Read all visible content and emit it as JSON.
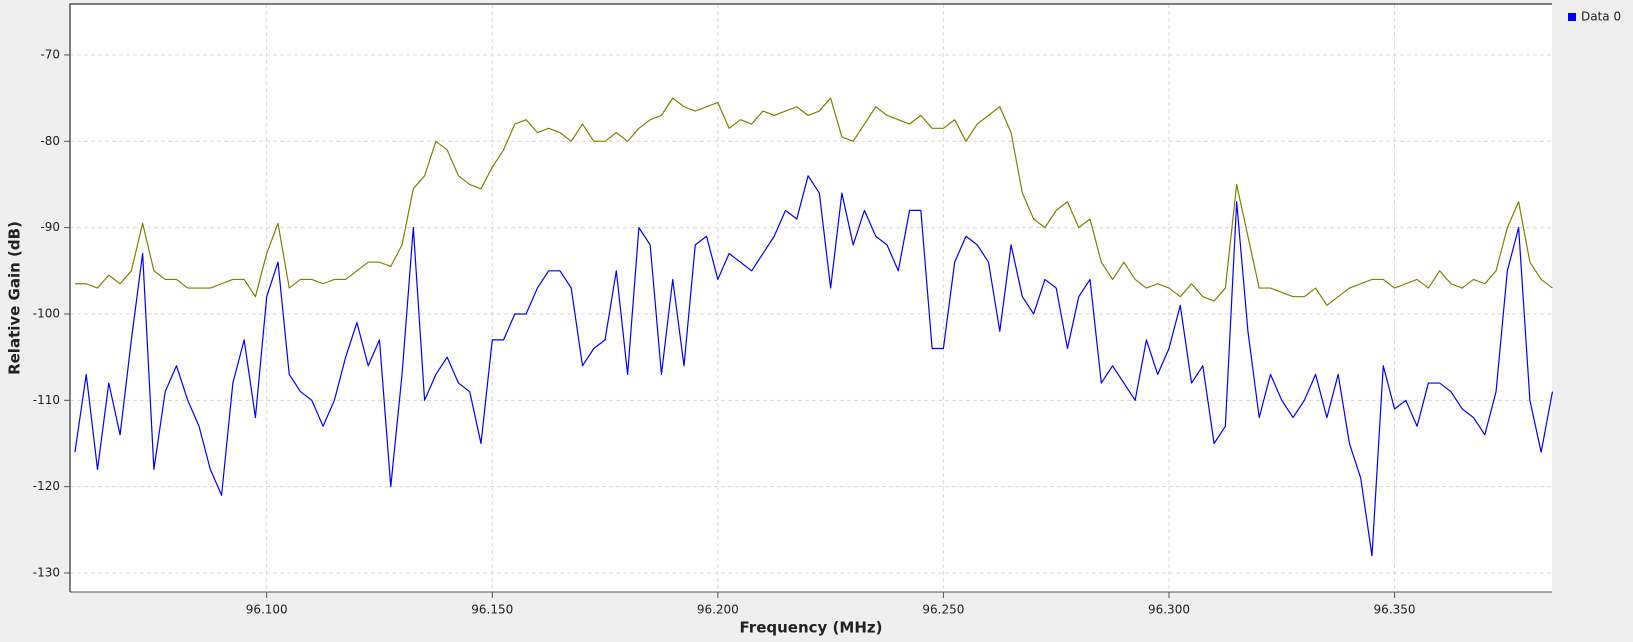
{
  "chart_data": {
    "type": "line",
    "x_label": "Frequency (MHz)",
    "y_label": "Relative Gain (dB)",
    "x": [
      96.0575,
      96.06,
      96.0625,
      96.065,
      96.0675,
      96.07,
      96.0725,
      96.075,
      96.0775,
      96.08,
      96.0825,
      96.085,
      96.0875,
      96.09,
      96.0925,
      96.095,
      96.0975,
      96.1,
      96.1025,
      96.105,
      96.1075,
      96.11,
      96.1125,
      96.115,
      96.1175,
      96.12,
      96.1225,
      96.125,
      96.1275,
      96.13,
      96.1325,
      96.135,
      96.1375,
      96.14,
      96.1425,
      96.145,
      96.1475,
      96.15,
      96.1525,
      96.155,
      96.1575,
      96.16,
      96.1625,
      96.165,
      96.1675,
      96.17,
      96.1725,
      96.175,
      96.1775,
      96.18,
      96.1825,
      96.185,
      96.1875,
      96.19,
      96.1925,
      96.195,
      96.1975,
      96.2,
      96.2025,
      96.205,
      96.2075,
      96.21,
      96.2125,
      96.215,
      96.2175,
      96.22,
      96.2225,
      96.225,
      96.2275,
      96.23,
      96.2325,
      96.235,
      96.2375,
      96.24,
      96.2425,
      96.245,
      96.2475,
      96.25,
      96.2525,
      96.255,
      96.2575,
      96.26,
      96.2625,
      96.265,
      96.2675,
      96.27,
      96.2725,
      96.275,
      96.2775,
      96.28,
      96.2825,
      96.285,
      96.2875,
      96.29,
      96.2925,
      96.295,
      96.2975,
      96.3,
      96.3025,
      96.305,
      96.3075,
      96.31,
      96.3125,
      96.315,
      96.3175,
      96.32,
      96.3225,
      96.325,
      96.3275,
      96.33,
      96.3325,
      96.335,
      96.3375,
      96.34,
      96.3425,
      96.345,
      96.3475,
      96.35,
      96.3525,
      96.355,
      96.3575,
      96.36,
      96.3625,
      96.365,
      96.3675,
      96.37,
      96.3725,
      96.375,
      96.3775,
      96.38,
      96.3825,
      96.385
    ],
    "series": [
      {
        "name": "Data 0",
        "color": "#0000ff",
        "values": [
          -116,
          -107,
          -118,
          -108,
          -114,
          -103,
          -93,
          -118,
          -109,
          -106,
          -110,
          -113,
          -118,
          -121,
          -108,
          -103,
          -112,
          -98,
          -94,
          -107,
          -109,
          -110,
          -113,
          -110,
          -105,
          -101,
          -106,
          -103,
          -120,
          -107,
          -90,
          -110,
          -107,
          -105,
          -108,
          -109,
          -115,
          -103,
          -103,
          -100,
          -100,
          -97,
          -95,
          -95,
          -97,
          -106,
          -104,
          -103,
          -95,
          -107,
          -90,
          -92,
          -107,
          -96,
          -106,
          -92,
          -91,
          -96,
          -93,
          -94,
          -95,
          -93,
          -91,
          -88,
          -89,
          -84,
          -86,
          -97,
          -86,
          -92,
          -88,
          -91,
          -92,
          -95,
          -88,
          -88,
          -104,
          -104,
          -94,
          -91,
          -92,
          -94,
          -102,
          -92,
          -98,
          -100,
          -96,
          -97,
          -104,
          -98,
          -96,
          -108,
          -106,
          -108,
          -110,
          -103,
          -107,
          -104,
          -99,
          -108,
          -106,
          -115,
          -113,
          -87,
          -102,
          -112,
          -107,
          -110,
          -112,
          -110,
          -107,
          -112,
          -107,
          -115,
          -119,
          -128,
          -106,
          -111,
          -110,
          -113,
          -108,
          -108,
          -109,
          -111,
          -112,
          -114,
          -109,
          -95,
          -90,
          -110,
          -116,
          -109
        ]
      },
      {
        "color": "#808000",
        "values": [
          -96.5,
          -96.5,
          -97,
          -95.5,
          -96.5,
          -95,
          -89.5,
          -95,
          -96,
          -96,
          -97,
          -97,
          -97,
          -96.5,
          -96,
          -96,
          -98,
          -93,
          -89.5,
          -97,
          -96,
          -96,
          -96.5,
          -96,
          -96,
          -95,
          -94,
          -94,
          -94.5,
          -92,
          -85.5,
          -84,
          -80,
          -81,
          -84,
          -85,
          -85.5,
          -83,
          -81,
          -78,
          -77.5,
          -79,
          -78.5,
          -79,
          -80,
          -78,
          -80,
          -80,
          -79,
          -80,
          -78.5,
          -77.5,
          -77,
          -75,
          -76,
          -76.5,
          -76,
          -75.5,
          -78.5,
          -77.5,
          -78,
          -76.5,
          -77,
          -76.5,
          -76,
          -77,
          -76.5,
          -75,
          -79.5,
          -80,
          -78,
          -76,
          -77,
          -77.5,
          -78,
          -77,
          -78.5,
          -78.5,
          -77.5,
          -80,
          -78,
          -77,
          -76,
          -79,
          -86,
          -89,
          -90,
          -88,
          -87,
          -90,
          -89,
          -94,
          -96,
          -94,
          -96,
          -97,
          -96.5,
          -97,
          -98,
          -96.5,
          -98,
          -98.5,
          -97,
          -85,
          -91,
          -97,
          -97,
          -97.5,
          -98,
          -98,
          -97,
          -99,
          -98,
          -97,
          -96.5,
          -96,
          -96,
          -97,
          -96.5,
          -96,
          -97,
          -95,
          -96.5,
          -97,
          -96,
          -96.5,
          -95,
          -90,
          -87,
          -94,
          -96,
          -97
        ]
      }
    ],
    "xlim": [
      96.0564,
      96.3849
    ],
    "xticks": [
      {
        "value": 96.1,
        "label": "96.100"
      },
      {
        "value": 96.15,
        "label": "96.150"
      },
      {
        "value": 96.2,
        "label": "96.200"
      },
      {
        "value": 96.25,
        "label": "96.250"
      },
      {
        "value": 96.3,
        "label": "96.300"
      },
      {
        "value": 96.35,
        "label": "96.350"
      }
    ],
    "ylim": [
      -132.2,
      -64.1
    ],
    "yticks": [
      -130,
      -120,
      -110,
      -100,
      -90,
      -80,
      -70
    ],
    "grid": true,
    "legend": "right"
  }
}
